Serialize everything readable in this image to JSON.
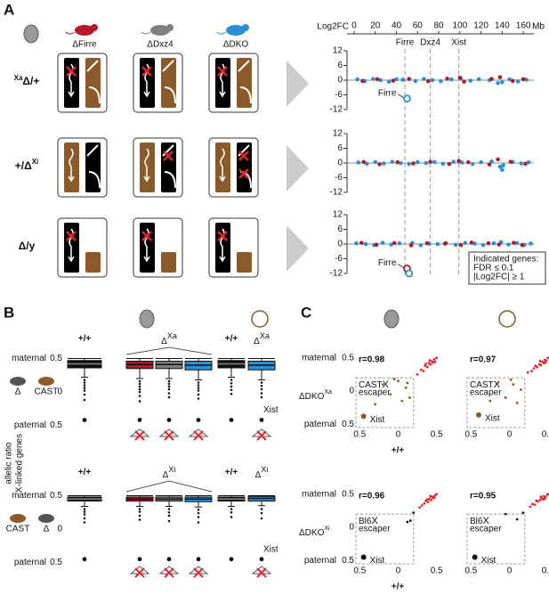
{
  "panel_a": {
    "label": "A",
    "genotypes": [
      "ΔFirre",
      "ΔDxz4",
      "ΔDKO"
    ],
    "rows": [
      {
        "sup_before": "Xa",
        "text": "Δ/+"
      },
      {
        "text": "+/Δ",
        "sup_after": "Xi"
      },
      {
        "text": "Δ/y"
      }
    ],
    "y_label": "Log2FC",
    "x_unit": "Mb",
    "xlim": [
      0,
      170
    ],
    "xticks": [
      0,
      20,
      40,
      60,
      80,
      100,
      120,
      140,
      160
    ],
    "ylim": [
      -14,
      14
    ],
    "yticks": [
      12,
      6,
      0,
      -6,
      -12
    ],
    "genes": [
      {
        "name": "Firre",
        "mb": 48
      },
      {
        "name": "Dxz4",
        "mb": 72
      },
      {
        "name": "Xist",
        "mb": 99
      }
    ],
    "plots": [
      {
        "callout": "Firre",
        "series": [
          {
            "color": "#2b8fd6",
            "mb": [
              3,
              10,
              18,
              25,
              33,
              40,
              46,
              58,
              66,
              74,
              82,
              92,
              101,
              110,
              118,
              128,
              136,
              140,
              147,
              155,
              163
            ],
            "log2fc": [
              0.3,
              -0.4,
              0.5,
              0,
              -0.6,
              0.4,
              0.2,
              -0.3,
              0.5,
              0,
              -0.4,
              0.3,
              0.6,
              -0.2,
              0.4,
              0,
              -1.2,
              -0.8,
              0.3,
              -0.5,
              0.2
            ]
          },
          {
            "color": "#b5172b",
            "mb": [
              8,
              22,
              37,
              52,
              70,
              88,
              100,
              104,
              130,
              138,
              150,
              160
            ],
            "log2fc": [
              -0.3,
              0.4,
              -0.2,
              0.5,
              -0.4,
              0.6,
              1,
              -0.6,
              0.5,
              1.2,
              -0.3,
              0.4
            ]
          },
          {
            "color": "#2b8fd6",
            "outlined": true,
            "mb": [
              50
            ],
            "log2fc": [
              -7.5
            ]
          }
        ]
      },
      {
        "series": [
          {
            "color": "#2b8fd6",
            "mb": [
              4,
              12,
              20,
              28,
              36,
              44,
              52,
              60,
              68,
              76,
              84,
              94,
              102,
              112,
              120,
              130,
              138,
              140,
              141,
              150,
              158,
              165
            ],
            "log2fc": [
              0.2,
              -0.3,
              0.4,
              -0.2,
              0.5,
              0,
              -0.4,
              0.3,
              0,
              0.4,
              -0.3,
              0.5,
              0.2,
              -0.4,
              0.3,
              0.6,
              -1.5,
              -2.8,
              -1,
              0.4,
              -0.2,
              0.3
            ]
          },
          {
            "color": "#b5172b",
            "mb": [
              9,
              24,
              41,
              56,
              72,
              90,
              99,
              108,
              128,
              136,
              148,
              162
            ],
            "log2fc": [
              0.4,
              -0.5,
              0.3,
              -0.2,
              0.5,
              -0.4,
              0.8,
              0.3,
              -0.6,
              1.5,
              0.5,
              -0.3
            ]
          }
        ]
      },
      {
        "callout": "Firre",
        "series": [
          {
            "color": "#2b8fd6",
            "mb": [
              2,
              11,
              19,
              27,
              35,
              43,
              55,
              63,
              71,
              79,
              87,
              96,
              105,
              114,
              122,
              132,
              139,
              146,
              154,
              161,
              167
            ],
            "log2fc": [
              0.3,
              0,
              -0.4,
              0.5,
              -0.2,
              0.3,
              0.4,
              -0.5,
              0.2,
              0,
              0.4,
              -0.3,
              0.5,
              0.2,
              -0.4,
              0.3,
              0.8,
              -0.2,
              0.4,
              -0.3,
              0.2
            ]
          },
          {
            "color": "#b5172b",
            "mb": [
              7,
              21,
              38,
              54,
              69,
              86,
              101,
              111,
              127,
              137,
              151,
              159
            ],
            "log2fc": [
              0.5,
              -0.3,
              0.4,
              -0.5,
              0.3,
              0.2,
              -0.4,
              0.6,
              0.3,
              -0.2,
              0.5,
              -0.4
            ]
          },
          {
            "color": "#b5172b",
            "outlined": true,
            "mb": [
              50
            ],
            "log2fc": [
              -10
            ]
          },
          {
            "color": "#2b8fd6",
            "outlined": true,
            "mb": [
              52
            ],
            "log2fc": [
              -12
            ]
          }
        ]
      }
    ],
    "legend": [
      "Indicated genes:",
      "FDR ≤ 0.1",
      "|Log2FC| ≥ 1"
    ]
  },
  "panel_b": {
    "label": "B",
    "y_title": "allelic ratio",
    "y_subtitle": "X-linked genes",
    "ylim": [
      -0.6,
      0.6
    ],
    "yticks": [
      0.5,
      0,
      {
        "value": -0.5,
        "label": "0.5"
      }
    ],
    "rows": [
      {
        "maternal": "maternal",
        "paternal": "paternal",
        "paternal_color": "#8b5a2b",
        "cross": [
          "Δ",
          "CAST"
        ],
        "xist": "Xist",
        "headers": [
          {
            "text": "+/+"
          },
          {
            "text": "Δ",
            "sup": "Xa"
          },
          {
            "text": "+/+"
          },
          {
            "text": "Δ",
            "sup": "Xa"
          }
        ],
        "boxes": [
          {
            "color": "#111111",
            "q1": 0.36,
            "median": 0.42,
            "q3": 0.47,
            "lo": 0.22,
            "hi": 0.5,
            "outliers": [
              0.18,
              0.14,
              0.1,
              0.06,
              0.02,
              -0.04,
              -0.12,
              -0.42
            ]
          },
          {
            "color": "#b5172b",
            "q1": 0.35,
            "median": 0.41,
            "q3": 0.46,
            "lo": 0.2,
            "hi": 0.5,
            "outliers": [
              0.16,
              0.12,
              0.08,
              0.04,
              0,
              -0.06,
              -0.14,
              -0.42
            ]
          },
          {
            "color": "#7f7f7f",
            "q1": 0.35,
            "median": 0.41,
            "q3": 0.46,
            "lo": 0.2,
            "hi": 0.5,
            "outliers": [
              0.16,
              0.12,
              0.08,
              0.04,
              -0.02,
              -0.08,
              -0.42
            ]
          },
          {
            "color": "#2b8fd6",
            "q1": 0.33,
            "median": 0.4,
            "q3": 0.46,
            "lo": 0.18,
            "hi": 0.5,
            "outliers": [
              0.14,
              0.1,
              0.06,
              0.02,
              -0.04,
              -0.1,
              -0.42
            ]
          },
          {
            "color": "#111111",
            "q1": 0.36,
            "median": 0.42,
            "q3": 0.47,
            "lo": 0.22,
            "hi": 0.5,
            "outliers": [
              0.18,
              0.13,
              0.08,
              0.03,
              -0.03,
              -0.42
            ]
          },
          {
            "color": "#2b8fd6",
            "q1": 0.33,
            "median": 0.4,
            "q3": 0.46,
            "lo": 0.18,
            "hi": 0.5,
            "outliers": [
              0.14,
              0.09,
              0.04,
              -0.02,
              -0.08,
              -0.42
            ]
          }
        ]
      },
      {
        "maternal": "maternal",
        "paternal": "paternal",
        "cross": [
          "CAST",
          "Δ"
        ],
        "xist": "Xist",
        "headers": [
          {
            "text": "+/+"
          },
          {
            "text": "Δ",
            "sup": "Xi"
          },
          {
            "text": "+/+"
          },
          {
            "text": "Δ",
            "sup": "Xi"
          }
        ],
        "boxes": [
          {
            "color": "#111111",
            "q1": 0.42,
            "median": 0.45,
            "q3": 0.48,
            "lo": 0.34,
            "hi": 0.5,
            "outliers": [
              0.3,
              0.26,
              0.22,
              0.16,
              0.1,
              -0.45
            ]
          },
          {
            "color": "#b5172b",
            "q1": 0.42,
            "median": 0.45,
            "q3": 0.48,
            "lo": 0.34,
            "hi": 0.5,
            "outliers": [
              0.3,
              0.26,
              0.2,
              0.14,
              -0.45
            ]
          },
          {
            "color": "#7f7f7f",
            "q1": 0.42,
            "median": 0.45,
            "q3": 0.48,
            "lo": 0.34,
            "hi": 0.5,
            "outliers": [
              0.3,
              0.25,
              0.2,
              0.12,
              -0.45
            ]
          },
          {
            "color": "#2b8fd6",
            "q1": 0.41,
            "median": 0.45,
            "q3": 0.48,
            "lo": 0.33,
            "hi": 0.5,
            "outliers": [
              0.29,
              0.24,
              0.18,
              0.1,
              -0.45
            ]
          },
          {
            "color": "#111111",
            "q1": 0.42,
            "median": 0.45,
            "q3": 0.48,
            "lo": 0.34,
            "hi": 0.5,
            "outliers": [
              0.3,
              0.25,
              0.18,
              -0.45
            ]
          },
          {
            "color": "#2b8fd6",
            "q1": 0.42,
            "median": 0.46,
            "q3": 0.49,
            "lo": 0.35,
            "hi": 0.5,
            "outliers": [
              0.3,
              0.24,
              0.16,
              -0.45
            ]
          }
        ]
      }
    ]
  },
  "panel_c": {
    "label": "C",
    "xlim": [
      -0.55,
      0.55
    ],
    "ylim": [
      -0.55,
      0.55
    ],
    "xticks": [
      {
        "value": -0.5,
        "label": "0.5"
      },
      0,
      0.5
    ],
    "yticks": [
      0.5,
      0,
      {
        "value": -0.5,
        "label": "0.5"
      }
    ],
    "escaper_cutoff": 0.2,
    "rows": [
      {
        "maternal": "maternal",
        "paternal": "paternal",
        "paternal_color": "#8b5a2b",
        "y_label": "ΔDKO",
        "y_sup": "Xa",
        "x_label": "+/+",
        "escaper": [
          "CAST",
          "X",
          "escaper"
        ],
        "xist": "Xist",
        "plots": [
          {
            "r": "r=0.98",
            "series": [
              {
                "color": "#e3262e",
                "x": [
                  0.25,
                  0.3,
                  0.33,
                  0.35,
                  0.38,
                  0.4,
                  0.42,
                  0.44,
                  0.45,
                  0.47,
                  0.5,
                  0.36,
                  0.41,
                  0.48
                ],
                "y": [
                  0.25,
                  0.32,
                  0.3,
                  0.38,
                  0.36,
                  0.42,
                  0.4,
                  0.45,
                  0.43,
                  0.48,
                  0.5,
                  0.41,
                  0.46,
                  0.44
                ]
              },
              {
                "color": "#8b5a2b",
                "x": [
                  -0.2,
                  -0.1,
                  0,
                  0.05,
                  -0.3,
                  0.1,
                  0.15,
                  -0.05,
                  0.12
                ],
                "y": [
                  0.1,
                  -0.05,
                  0.15,
                  -0.15,
                  -0.2,
                  0.05,
                  -0.1,
                  0.18,
                  0.12
                ]
              },
              {
                "color": "#8b5a2b",
                "big": true,
                "x": [
                  -0.45
                ],
                "y": [
                  -0.38
                ]
              }
            ]
          },
          {
            "r": "r=0.97",
            "series": [
              {
                "color": "#e3262e",
                "x": [
                  0.24,
                  0.29,
                  0.32,
                  0.36,
                  0.39,
                  0.41,
                  0.43,
                  0.45,
                  0.46,
                  0.48,
                  0.5,
                  0.34,
                  0.4,
                  0.47
                ],
                "y": [
                  0.28,
                  0.3,
                  0.34,
                  0.36,
                  0.4,
                  0.39,
                  0.44,
                  0.42,
                  0.47,
                  0.46,
                  0.5,
                  0.38,
                  0.45,
                  0.43
                ]
              },
              {
                "color": "#8b5a2b",
                "x": [
                  -0.15,
                  -0.05,
                  0.05,
                  0.1,
                  -0.25,
                  0.15,
                  0.02
                ],
                "y": [
                  0.12,
                  -0.1,
                  0.1,
                  -0.18,
                  -0.15,
                  0.02,
                  0.17
                ]
              },
              {
                "color": "#8b5a2b",
                "big": true,
                "x": [
                  -0.4
                ],
                "y": [
                  -0.36
                ]
              }
            ]
          }
        ]
      },
      {
        "maternal": "maternal",
        "paternal": "paternal",
        "maternal_color": "#8b5a2b",
        "y_label": "ΔDKO",
        "y_sup": "Xi",
        "x_label": "+/+",
        "escaper": [
          "Bl6",
          "X",
          "escaper"
        ],
        "xist": "Xist",
        "plots": [
          {
            "r": "r=0.96",
            "series": [
              {
                "color": "#e3262e",
                "x": [
                  0.28,
                  0.31,
                  0.34,
                  0.36,
                  0.39,
                  0.41,
                  0.43,
                  0.44,
                  0.46,
                  0.48,
                  0.5,
                  0.38,
                  0.42,
                  0.47
                ],
                "y": [
                  0.3,
                  0.33,
                  0.36,
                  0.4,
                  0.38,
                  0.43,
                  0.41,
                  0.46,
                  0.44,
                  0.48,
                  0.5,
                  0.42,
                  0.47,
                  0.45
                ]
              },
              {
                "color": "#111111",
                "x": [
                  0.12,
                  0.16,
                  0.2
                ],
                "y": [
                  0.08,
                  0.1,
                  0.22
                ]
              },
              {
                "color": "#111111",
                "big": true,
                "x": [
                  -0.45
                ],
                "y": [
                  -0.45
                ]
              }
            ]
          },
          {
            "r": "r=0.95",
            "series": [
              {
                "color": "#e3262e",
                "x": [
                  0.27,
                  0.3,
                  0.33,
                  0.37,
                  0.4,
                  0.42,
                  0.44,
                  0.45,
                  0.47,
                  0.49,
                  0.5,
                  0.35,
                  0.41,
                  0.46
                ],
                "y": [
                  0.31,
                  0.35,
                  0.34,
                  0.39,
                  0.41,
                  0.44,
                  0.42,
                  0.47,
                  0.45,
                  0.49,
                  0.5,
                  0.4,
                  0.46,
                  0.43
                ]
              },
              {
                "color": "#111111",
                "x": [
                  -0.05,
                  0.1,
                  0.18
                ],
                "y": [
                  0.2,
                  0.12,
                  0.22
                ]
              },
              {
                "color": "#111111",
                "big": true,
                "x": [
                  -0.45
                ],
                "y": [
                  -0.45
                ]
              }
            ]
          }
        ]
      }
    ]
  }
}
